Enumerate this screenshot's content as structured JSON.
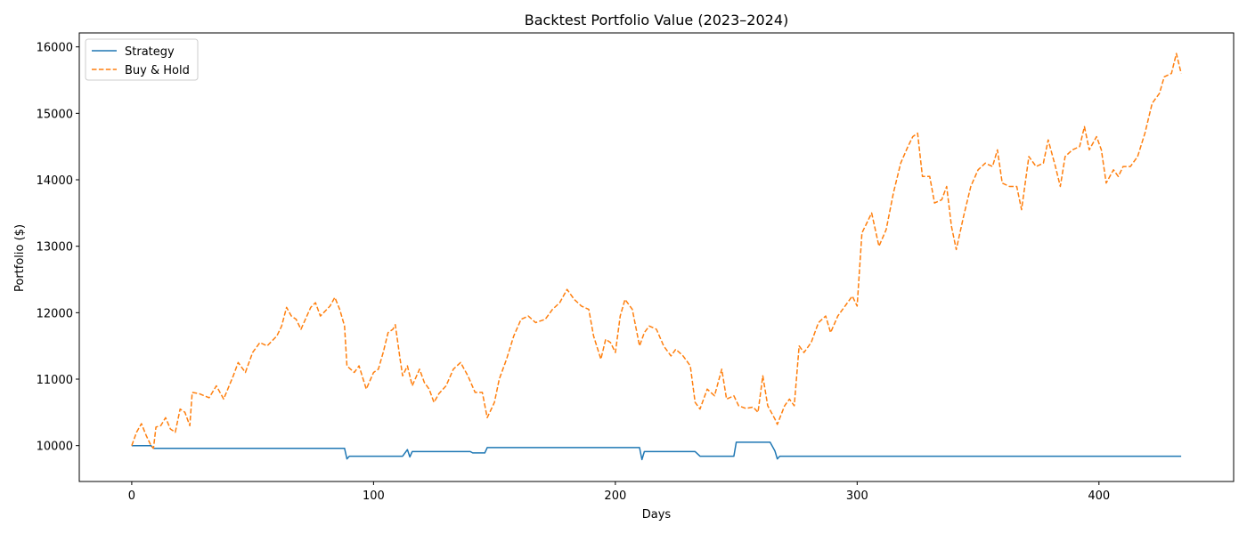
{
  "chart_data": {
    "type": "line",
    "title": "Backtest Portfolio Value (2023–2024)",
    "xlabel": "Days",
    "ylabel": "Portfolio ($)",
    "xlim": [
      -21.7,
      455.7
    ],
    "ylim": [
      9460,
      16210
    ],
    "xticks": [
      0,
      100,
      200,
      300,
      400
    ],
    "yticks": [
      10000,
      11000,
      12000,
      13000,
      14000,
      15000,
      16000
    ],
    "grid": false,
    "legend_position": "top-left",
    "series": [
      {
        "name": "Strategy",
        "color": "#1f77b4",
        "style": "solid",
        "points": [
          [
            0,
            10000
          ],
          [
            8,
            10000
          ],
          [
            9,
            9960
          ],
          [
            88,
            9960
          ],
          [
            89,
            9800
          ],
          [
            90,
            9840
          ],
          [
            112,
            9840
          ],
          [
            114,
            9940
          ],
          [
            115,
            9830
          ],
          [
            116,
            9910
          ],
          [
            140,
            9910
          ],
          [
            141,
            9890
          ],
          [
            146,
            9890
          ],
          [
            147,
            9970
          ],
          [
            210,
            9970
          ],
          [
            211,
            9790
          ],
          [
            212,
            9910
          ],
          [
            233,
            9910
          ],
          [
            235,
            9840
          ],
          [
            249,
            9840
          ],
          [
            250,
            10050
          ],
          [
            264,
            10050
          ],
          [
            266,
            9920
          ],
          [
            267,
            9800
          ],
          [
            268,
            9840
          ],
          [
            434,
            9840
          ]
        ]
      },
      {
        "name": "Buy & Hold",
        "color": "#ff7f0e",
        "style": "dashed",
        "points": [
          [
            0,
            10000
          ],
          [
            2,
            10200
          ],
          [
            4,
            10330
          ],
          [
            6,
            10150
          ],
          [
            8,
            10000
          ],
          [
            9,
            9960
          ],
          [
            10,
            10280
          ],
          [
            12,
            10300
          ],
          [
            14,
            10420
          ],
          [
            16,
            10250
          ],
          [
            18,
            10200
          ],
          [
            20,
            10550
          ],
          [
            22,
            10500
          ],
          [
            24,
            10300
          ],
          [
            25,
            10800
          ],
          [
            28,
            10780
          ],
          [
            32,
            10720
          ],
          [
            35,
            10900
          ],
          [
            38,
            10700
          ],
          [
            42,
            11050
          ],
          [
            44,
            11250
          ],
          [
            47,
            11100
          ],
          [
            50,
            11400
          ],
          [
            53,
            11550
          ],
          [
            56,
            11500
          ],
          [
            60,
            11650
          ],
          [
            62,
            11800
          ],
          [
            64,
            12080
          ],
          [
            66,
            11950
          ],
          [
            68,
            11900
          ],
          [
            70,
            11750
          ],
          [
            74,
            12080
          ],
          [
            76,
            12150
          ],
          [
            78,
            11950
          ],
          [
            82,
            12100
          ],
          [
            84,
            12230
          ],
          [
            86,
            12050
          ],
          [
            88,
            11800
          ],
          [
            89,
            11200
          ],
          [
            92,
            11100
          ],
          [
            94,
            11200
          ],
          [
            97,
            10850
          ],
          [
            100,
            11100
          ],
          [
            102,
            11150
          ],
          [
            104,
            11400
          ],
          [
            106,
            11700
          ],
          [
            108,
            11750
          ],
          [
            109,
            11820
          ],
          [
            111,
            11300
          ],
          [
            112,
            11050
          ],
          [
            114,
            11200
          ],
          [
            116,
            10900
          ],
          [
            119,
            11150
          ],
          [
            121,
            10950
          ],
          [
            123,
            10850
          ],
          [
            125,
            10650
          ],
          [
            127,
            10780
          ],
          [
            130,
            10900
          ],
          [
            133,
            11150
          ],
          [
            136,
            11250
          ],
          [
            139,
            11050
          ],
          [
            142,
            10800
          ],
          [
            145,
            10800
          ],
          [
            147,
            10420
          ],
          [
            150,
            10650
          ],
          [
            152,
            11000
          ],
          [
            155,
            11300
          ],
          [
            158,
            11650
          ],
          [
            161,
            11900
          ],
          [
            164,
            11950
          ],
          [
            167,
            11850
          ],
          [
            171,
            11900
          ],
          [
            174,
            12050
          ],
          [
            177,
            12150
          ],
          [
            180,
            12350
          ],
          [
            183,
            12200
          ],
          [
            186,
            12100
          ],
          [
            189,
            12050
          ],
          [
            191,
            11650
          ],
          [
            194,
            11300
          ],
          [
            196,
            11600
          ],
          [
            198,
            11550
          ],
          [
            200,
            11400
          ],
          [
            202,
            11950
          ],
          [
            204,
            12200
          ],
          [
            207,
            12050
          ],
          [
            210,
            11500
          ],
          [
            212,
            11700
          ],
          [
            214,
            11800
          ],
          [
            217,
            11750
          ],
          [
            220,
            11500
          ],
          [
            223,
            11350
          ],
          [
            225,
            11450
          ],
          [
            228,
            11350
          ],
          [
            231,
            11200
          ],
          [
            233,
            10650
          ],
          [
            235,
            10550
          ],
          [
            238,
            10850
          ],
          [
            241,
            10750
          ],
          [
            244,
            11150
          ],
          [
            246,
            10700
          ],
          [
            249,
            10750
          ],
          [
            251,
            10600
          ],
          [
            254,
            10560
          ],
          [
            257,
            10580
          ],
          [
            259,
            10500
          ],
          [
            261,
            11050
          ],
          [
            263,
            10600
          ],
          [
            266,
            10400
          ],
          [
            267,
            10320
          ],
          [
            270,
            10600
          ],
          [
            272,
            10700
          ],
          [
            274,
            10600
          ],
          [
            276,
            11500
          ],
          [
            278,
            11400
          ],
          [
            281,
            11550
          ],
          [
            284,
            11850
          ],
          [
            287,
            11950
          ],
          [
            289,
            11700
          ],
          [
            292,
            11950
          ],
          [
            295,
            12100
          ],
          [
            298,
            12250
          ],
          [
            300,
            12100
          ],
          [
            302,
            13200
          ],
          [
            304,
            13350
          ],
          [
            306,
            13500
          ],
          [
            309,
            13000
          ],
          [
            312,
            13250
          ],
          [
            315,
            13800
          ],
          [
            318,
            14250
          ],
          [
            321,
            14500
          ],
          [
            323,
            14650
          ],
          [
            325,
            14700
          ],
          [
            327,
            14050
          ],
          [
            330,
            14050
          ],
          [
            332,
            13650
          ],
          [
            335,
            13700
          ],
          [
            337,
            13900
          ],
          [
            339,
            13300
          ],
          [
            341,
            12950
          ],
          [
            344,
            13450
          ],
          [
            347,
            13900
          ],
          [
            350,
            14150
          ],
          [
            353,
            14250
          ],
          [
            356,
            14200
          ],
          [
            358,
            14450
          ],
          [
            360,
            13950
          ],
          [
            363,
            13900
          ],
          [
            366,
            13900
          ],
          [
            368,
            13550
          ],
          [
            371,
            14350
          ],
          [
            374,
            14200
          ],
          [
            377,
            14250
          ],
          [
            379,
            14600
          ],
          [
            382,
            14200
          ],
          [
            384,
            13900
          ],
          [
            386,
            14350
          ],
          [
            389,
            14450
          ],
          [
            392,
            14500
          ],
          [
            394,
            14800
          ],
          [
            396,
            14450
          ],
          [
            399,
            14650
          ],
          [
            401,
            14450
          ],
          [
            403,
            13950
          ],
          [
            406,
            14150
          ],
          [
            408,
            14050
          ],
          [
            410,
            14200
          ],
          [
            413,
            14200
          ],
          [
            416,
            14350
          ],
          [
            419,
            14700
          ],
          [
            422,
            15150
          ],
          [
            425,
            15300
          ],
          [
            427,
            15550
          ],
          [
            430,
            15600
          ],
          [
            432,
            15900
          ],
          [
            434,
            15600
          ]
        ]
      }
    ]
  }
}
